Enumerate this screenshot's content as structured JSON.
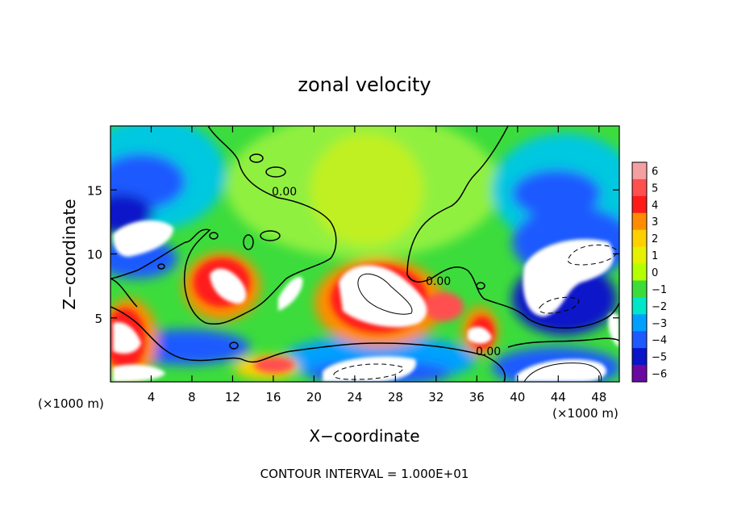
{
  "chart_data": {
    "type": "heatmap",
    "title": "zonal velocity",
    "xlabel": "X−coordinate",
    "ylabel": "Z−coordinate",
    "x_scale_note_left": "(×1000 m)",
    "x_scale_note_right": "(×1000 m)",
    "xlim": [
      0,
      50
    ],
    "ylim": [
      0,
      20
    ],
    "x_ticks": [
      4,
      8,
      12,
      16,
      20,
      24,
      28,
      32,
      36,
      40,
      44,
      48
    ],
    "y_ticks": [
      5,
      10,
      15
    ],
    "colorbar": {
      "levels": [
        6,
        5,
        4,
        3,
        2,
        1,
        0,
        -1,
        -2,
        -3,
        -4,
        -5,
        -6
      ],
      "labels": [
        "6",
        "5",
        "4",
        "3",
        "2",
        "1",
        "0",
        "−1",
        "−2",
        "−3",
        "−4",
        "−5",
        "−6"
      ],
      "colors": [
        "#f4a0a0",
        "#ff5050",
        "#ff1a1a",
        "#ff8c00",
        "#ffd000",
        "#e6f000",
        "#b4ff00",
        "#3cdc3c",
        "#00e6c8",
        "#00a0ff",
        "#1e5aff",
        "#0a14c8",
        "#6a0aa0"
      ]
    },
    "contour_labels": [
      "0.00",
      "0.00",
      "0.00"
    ],
    "footer": "CONTOUR INTERVAL = 1.000E+01"
  }
}
